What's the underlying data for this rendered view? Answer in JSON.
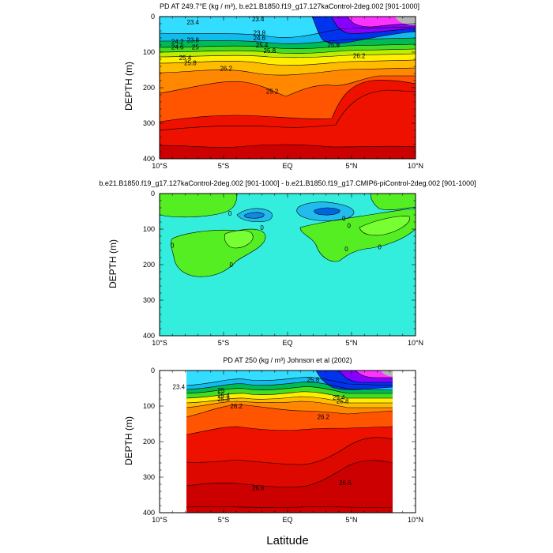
{
  "figure": {
    "x_axis_label": "Latitude"
  },
  "chart_data": [
    {
      "type": "heatmap",
      "title": "PD AT 249.7°E (kg / m³), b.e21.B1850.f19_g17.127kaControl-2deg.002 [901-1000]",
      "ylabel": "DEPTH (m)",
      "xlabel": "",
      "xlim": [
        -10,
        10
      ],
      "ylim": [
        400,
        0
      ],
      "x_tick_labels": [
        "10°S",
        "5°S",
        "EQ",
        "5°N",
        "10°N"
      ],
      "y_tick_labels": [
        "0",
        "100",
        "200",
        "300",
        "400"
      ],
      "contour_labels": [
        "23.4",
        "23.8",
        "24.2",
        "24.6",
        "25",
        "25.4",
        "25.8",
        "26.2",
        "25.2",
        "23.4",
        "23.8",
        "24.6",
        "25.4",
        "25.8",
        "26.2",
        "25.8"
      ],
      "colors": {
        "surface_light": "#33ddff",
        "green": "#44dd22",
        "yellow": "#ffee00",
        "orange": "#ff8800",
        "red": "#ee1100",
        "deep": "#cc0000",
        "blue": "#0033ee",
        "magenta": "#ff33ff",
        "missing": "#b4b4b4"
      }
    },
    {
      "type": "heatmap",
      "title": "b.e21.B1850.f19_g17.127kaControl-2deg.002 [901-1000] - b.e21.B1850.f19_g17.CMIP6-piControl-2deg.002 [901-1000]",
      "ylabel": "DEPTH (m)",
      "xlabel": "",
      "xlim": [
        -10,
        10
      ],
      "ylim": [
        400,
        0
      ],
      "x_tick_labels": [
        "10°S",
        "5°S",
        "EQ",
        "5°N",
        "10°N"
      ],
      "y_tick_labels": [
        "0",
        "100",
        "200",
        "300",
        "400"
      ],
      "contour_labels": [
        "0",
        "0",
        "0",
        "0",
        "0",
        "0",
        "0",
        "0"
      ],
      "colors": {
        "background": "#33eedd",
        "positive": "#55ee22",
        "negative": "#22bbee"
      }
    },
    {
      "type": "heatmap",
      "title": "PD AT 250 (kg / m³) Johnson et al (2002)",
      "ylabel": "DEPTH (m)",
      "xlabel": "",
      "xlim": [
        -10,
        10
      ],
      "ylim": [
        400,
        0
      ],
      "x_tick_labels": [
        "10°S",
        "5°S",
        "EQ",
        "5°N",
        "10°N"
      ],
      "y_tick_labels": [
        "0",
        "100",
        "200",
        "300",
        "400"
      ],
      "data_xlim": [
        -8,
        8.3
      ],
      "contour_labels": [
        "23.4",
        "25",
        "25.4",
        "25.8",
        "26.2",
        "26.2",
        "25.4",
        "25.8",
        "25.8",
        "26.6",
        "26.6"
      ],
      "colors": {
        "surface_light": "#33ddff",
        "green": "#44dd22",
        "yellow": "#ffee00",
        "orange": "#ff6600",
        "red": "#ee1100",
        "deep": "#cc0000",
        "blue": "#0033ee",
        "magenta": "#ff33ff",
        "missing": "#b4b4b4"
      }
    }
  ]
}
